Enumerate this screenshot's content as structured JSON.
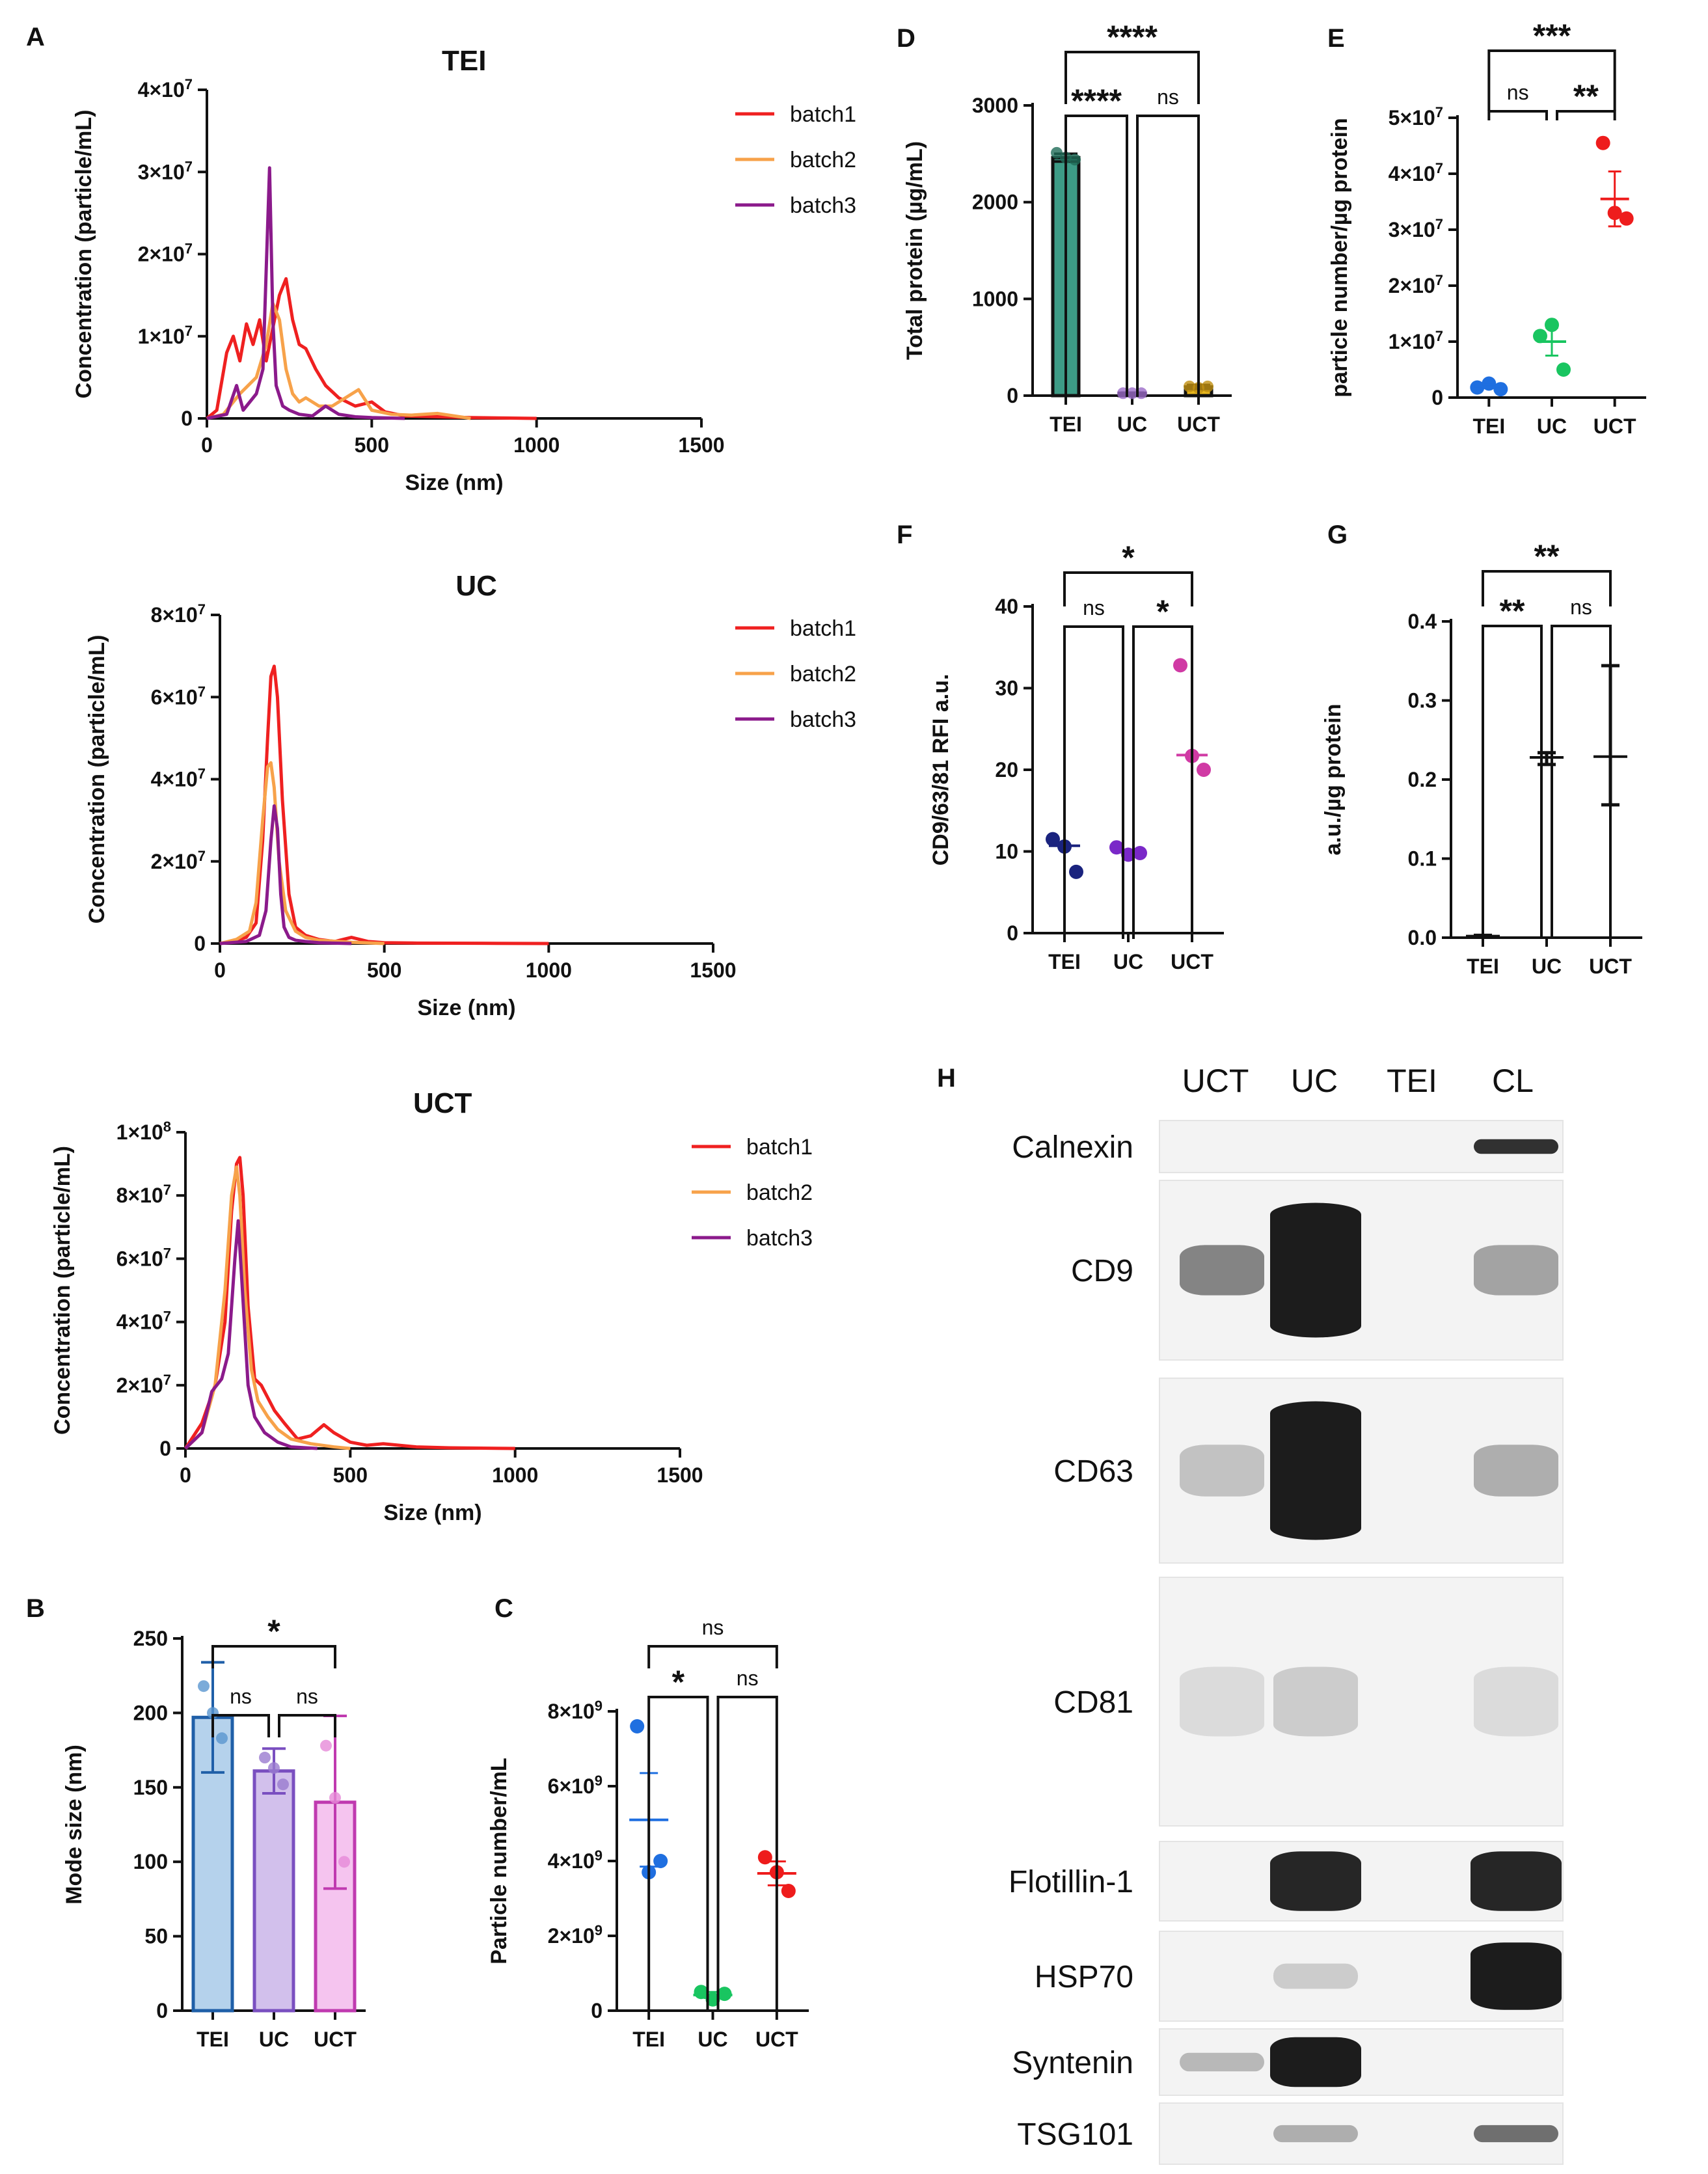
{
  "colors": {
    "batch1": "#ef2020",
    "batch2": "#f7a24a",
    "batch3": "#8b1a8b",
    "teal": "#3d9b86",
    "purple_dot": "#9b6bc8",
    "yellow": "#e8b81e",
    "blue": "#1f6fe0",
    "green": "#19c560",
    "red": "#ee1c1c",
    "navy": "#1a237e",
    "violet": "#7a28c8",
    "magenta": "#d03aa4",
    "bar_blue_fill": "#b5d2ec",
    "bar_blue_edge": "#1f5fa8",
    "bar_purple_fill": "#d2c0ec",
    "bar_purple_edge": "#7a4fc0",
    "bar_pink_fill": "#f5c4ef",
    "bar_pink_edge": "#c03ab0"
  },
  "chart_data": [
    {
      "id": "A_TEI",
      "panel_letter": "A",
      "type": "line",
      "title": "TEI",
      "xlabel": "Size (nm)",
      "ylabel": "Concentration (particle/mL)",
      "xlim": [
        0,
        1500
      ],
      "ylim": [
        0,
        40000000
      ],
      "xticks": [
        "0",
        "500",
        "1000",
        "1500"
      ],
      "yticks": [
        "0",
        "1×10^7",
        "2×10^7",
        "3×10^7",
        "4×10^7"
      ],
      "legend": [
        "batch1",
        "batch2",
        "batch3"
      ],
      "series": [
        {
          "name": "batch1",
          "x": [
            0,
            30,
            60,
            80,
            100,
            120,
            140,
            160,
            180,
            200,
            220,
            240,
            260,
            280,
            300,
            330,
            360,
            400,
            450,
            500,
            540,
            600,
            700,
            800,
            900,
            1000
          ],
          "y": [
            0,
            1000000,
            8000000,
            10000000,
            7000000,
            11500000,
            9000000,
            12000000,
            7000000,
            11000000,
            15000000,
            17000000,
            12000000,
            9000000,
            8500000,
            6000000,
            4000000,
            2500000,
            1500000,
            2000000,
            800000,
            300000,
            200000,
            100000,
            50000,
            0
          ]
        },
        {
          "name": "batch2",
          "x": [
            0,
            50,
            100,
            150,
            180,
            200,
            220,
            240,
            260,
            280,
            300,
            340,
            380,
            420,
            460,
            500,
            560,
            620,
            700,
            800
          ],
          "y": [
            0,
            500000,
            3000000,
            5000000,
            9000000,
            14000000,
            12000000,
            6000000,
            3000000,
            2000000,
            2500000,
            1500000,
            1500000,
            2500000,
            3500000,
            1000000,
            500000,
            400000,
            600000,
            0
          ]
        },
        {
          "name": "batch3",
          "x": [
            0,
            60,
            90,
            110,
            130,
            150,
            170,
            190,
            200,
            210,
            230,
            250,
            280,
            320,
            360,
            400,
            450,
            500,
            600
          ],
          "y": [
            0,
            500000,
            4000000,
            1000000,
            2000000,
            3000000,
            6000000,
            30500000,
            12000000,
            4000000,
            1500000,
            1000000,
            500000,
            300000,
            1500000,
            500000,
            200000,
            100000,
            0
          ]
        }
      ]
    },
    {
      "id": "A_UC",
      "type": "line",
      "title": "UC",
      "xlabel": "Size (nm)",
      "ylabel": "Concentration (particle/mL)",
      "xlim": [
        0,
        1500
      ],
      "ylim": [
        0,
        80000000
      ],
      "xticks": [
        "0",
        "500",
        "1000",
        "1500"
      ],
      "yticks": [
        "0",
        "2×10^7",
        "4×10^7",
        "6×10^7",
        "8×10^7"
      ],
      "legend": [
        "batch1",
        "batch2",
        "batch3"
      ],
      "series": [
        {
          "name": "batch1",
          "x": [
            0,
            40,
            80,
            110,
            130,
            145,
            155,
            165,
            175,
            190,
            210,
            230,
            260,
            300,
            350,
            400,
            450,
            500,
            600,
            800,
            1000
          ],
          "y": [
            0,
            500000,
            1500000,
            5000000,
            25000000,
            50000000,
            65000000,
            67500000,
            60000000,
            35000000,
            12000000,
            4000000,
            2000000,
            1000000,
            500000,
            1500000,
            500000,
            200000,
            100000,
            50000,
            0
          ]
        },
        {
          "name": "batch2",
          "x": [
            0,
            50,
            90,
            110,
            130,
            145,
            155,
            165,
            180,
            200,
            230,
            260,
            300,
            400,
            500
          ],
          "y": [
            0,
            1000000,
            3000000,
            10000000,
            30000000,
            43000000,
            44000000,
            38000000,
            20000000,
            8000000,
            3000000,
            1500000,
            800000,
            300000,
            0
          ]
        },
        {
          "name": "batch3",
          "x": [
            0,
            80,
            120,
            140,
            155,
            165,
            175,
            185,
            195,
            210,
            230,
            260,
            300,
            400
          ],
          "y": [
            0,
            500000,
            2000000,
            8000000,
            25000000,
            33500000,
            28000000,
            12000000,
            4000000,
            1500000,
            800000,
            500000,
            200000,
            0
          ]
        }
      ]
    },
    {
      "id": "A_UCT",
      "type": "line",
      "title": "UCT",
      "xlabel": "Size (nm)",
      "ylabel": "Concentration (particle/mL)",
      "xlim": [
        0,
        1500
      ],
      "ylim": [
        0,
        100000000
      ],
      "xticks": [
        "0",
        "500",
        "1000",
        "1500"
      ],
      "yticks": [
        "0",
        "2×10^7",
        "4×10^7",
        "6×10^7",
        "8×10^7",
        "1×10^8"
      ],
      "legend": [
        "batch1",
        "batch2",
        "batch3"
      ],
      "series": [
        {
          "name": "batch1",
          "x": [
            0,
            50,
            90,
            120,
            140,
            155,
            165,
            175,
            190,
            210,
            230,
            250,
            270,
            300,
            340,
            380,
            420,
            450,
            500,
            550,
            600,
            700,
            800,
            1000
          ],
          "y": [
            0,
            8000000,
            20000000,
            40000000,
            75000000,
            90000000,
            92000000,
            80000000,
            45000000,
            22000000,
            20000000,
            16000000,
            12000000,
            8000000,
            3000000,
            4000000,
            7500000,
            5000000,
            2000000,
            1000000,
            1500000,
            500000,
            200000,
            0
          ]
        },
        {
          "name": "batch2",
          "x": [
            0,
            50,
            90,
            120,
            140,
            155,
            165,
            180,
            200,
            220,
            250,
            280,
            320,
            380,
            450,
            500
          ],
          "y": [
            0,
            5000000,
            20000000,
            50000000,
            80000000,
            89000000,
            80000000,
            50000000,
            25000000,
            15000000,
            10000000,
            6000000,
            3000000,
            1500000,
            500000,
            0
          ]
        },
        {
          "name": "batch3",
          "x": [
            0,
            50,
            80,
            110,
            130,
            150,
            160,
            170,
            190,
            210,
            240,
            280,
            320,
            400
          ],
          "y": [
            0,
            5000000,
            18000000,
            22000000,
            30000000,
            60000000,
            72000000,
            55000000,
            20000000,
            10000000,
            5000000,
            2000000,
            500000,
            0
          ]
        }
      ]
    },
    {
      "id": "B",
      "panel_letter": "B",
      "type": "bar",
      "ylabel": "Mode size (nm)",
      "categories": [
        "TEI",
        "UC",
        "UCT"
      ],
      "values": [
        197,
        161,
        140
      ],
      "errors": [
        37,
        15,
        58
      ],
      "points": [
        [
          218,
          200,
          183
        ],
        [
          170,
          163,
          152
        ],
        [
          178,
          143,
          100
        ]
      ],
      "ylim": [
        0,
        250
      ],
      "yticks": [
        "0",
        "50",
        "100",
        "150",
        "200",
        "250"
      ],
      "sig": [
        {
          "from": 0,
          "to": 2,
          "label": "*",
          "level": 1
        },
        {
          "from": 0,
          "to": 1,
          "label": "ns",
          "level": 0
        },
        {
          "from": 1,
          "to": 2,
          "label": "ns",
          "level": 0
        }
      ]
    },
    {
      "id": "C",
      "panel_letter": "C",
      "type": "scatter",
      "ylabel": "Particle number/mL",
      "categories": [
        "TEI",
        "UC",
        "UCT"
      ],
      "points": [
        [
          7600000000,
          3700000000,
          4000000000
        ],
        [
          500000000,
          300000000,
          450000000
        ],
        [
          4100000000,
          3700000000,
          3200000000
        ]
      ],
      "mean": [
        5100000000,
        420000000,
        3670000000
      ],
      "sem": [
        1250000000,
        80000000,
        320000000
      ],
      "ylim": [
        0,
        8000000000
      ],
      "yticks": [
        "0",
        "2×10^9",
        "4×10^9",
        "6×10^9",
        "8×10^9"
      ],
      "sig": [
        {
          "from": 0,
          "to": 2,
          "label": "ns",
          "level": 1
        },
        {
          "from": 0,
          "to": 1,
          "label": "*",
          "level": 0
        },
        {
          "from": 1,
          "to": 2,
          "label": "ns",
          "level": 0
        }
      ]
    },
    {
      "id": "D",
      "panel_letter": "D",
      "type": "bar",
      "ylabel": "Total protein (µg/mL)",
      "categories": [
        "TEI",
        "UC",
        "UCT"
      ],
      "values": [
        2460,
        25,
        90
      ],
      "errors": [
        40,
        5,
        20
      ],
      "points": [
        [
          2510,
          2460,
          2440
        ],
        [
          25,
          25,
          25
        ],
        [
          95,
          80,
          95
        ]
      ],
      "ylim": [
        0,
        3000
      ],
      "yticks": [
        "0",
        "1000",
        "2000",
        "3000"
      ],
      "sig": [
        {
          "from": 0,
          "to": 2,
          "label": "****",
          "level": 1
        },
        {
          "from": 0,
          "to": 1,
          "label": "****",
          "level": 0
        },
        {
          "from": 1,
          "to": 2,
          "label": "ns",
          "level": 0
        }
      ]
    },
    {
      "id": "E",
      "panel_letter": "E",
      "type": "scatter",
      "ylabel": "particle number/µg protein",
      "categories": [
        "TEI",
        "UC",
        "UCT"
      ],
      "points": [
        [
          1800000,
          2500000,
          1500000
        ],
        [
          11000000,
          13000000,
          5000000
        ],
        [
          45500000,
          33000000,
          32000000
        ]
      ],
      "mean": [
        2000000,
        10000000,
        35500000
      ],
      "sem": [
        300000,
        2500000,
        4900000
      ],
      "ylim": [
        0,
        50000000
      ],
      "yticks": [
        "0",
        "1×10^7",
        "2×10^7",
        "3×10^7",
        "4×10^7",
        "5×10^7"
      ],
      "sig": [
        {
          "from": 0,
          "to": 2,
          "label": "***",
          "level": 1
        },
        {
          "from": 0,
          "to": 1,
          "label": "ns",
          "level": 0
        },
        {
          "from": 1,
          "to": 2,
          "label": "**",
          "level": 0
        }
      ]
    },
    {
      "id": "F",
      "panel_letter": "F",
      "type": "scatter",
      "ylabel": "CD9/63/81 RFI a.u.",
      "categories": [
        "TEI",
        "UC",
        "UCT"
      ],
      "points": [
        [
          11.5,
          10.6,
          7.5
        ],
        [
          10.5,
          9.6,
          9.8
        ],
        [
          32.8,
          21.7,
          20.0
        ]
      ],
      "mean": [
        10.7,
        9.9,
        21.8
      ],
      "ylim": [
        0,
        40
      ],
      "yticks": [
        "0",
        "10",
        "20",
        "30",
        "40"
      ],
      "sig": [
        {
          "from": 0,
          "to": 2,
          "label": "*",
          "level": 1
        },
        {
          "from": 0,
          "to": 1,
          "label": "ns",
          "level": 0
        },
        {
          "from": 1,
          "to": 2,
          "label": "*",
          "level": 0
        }
      ]
    },
    {
      "id": "G",
      "panel_letter": "G",
      "type": "scatter",
      "ylabel": "a.u./µg protein",
      "categories": [
        "TEI",
        "UC",
        "UCT"
      ],
      "mean": [
        0.002,
        0.228,
        0.229
      ],
      "err_low": [
        0.001,
        0.219,
        0.168
      ],
      "err_high": [
        0.003,
        0.234,
        0.344
      ],
      "ylim": [
        0,
        0.4
      ],
      "yticks": [
        "0.0",
        "0.1",
        "0.2",
        "0.3",
        "0.4"
      ],
      "sig": [
        {
          "from": 0,
          "to": 2,
          "label": "**",
          "level": 1
        },
        {
          "from": 0,
          "to": 1,
          "label": "**",
          "level": 0
        },
        {
          "from": 1,
          "to": 2,
          "label": "ns",
          "level": 0
        }
      ]
    }
  ],
  "western_blot": {
    "panel_letter": "H",
    "columns": [
      "UCT",
      "UC",
      "TEI",
      "CL"
    ],
    "rows": [
      {
        "label": "Calnexin",
        "bands": [
          0,
          0,
          0,
          0.9
        ]
      },
      {
        "label": "CD9",
        "bands": [
          0.5,
          1.0,
          0,
          0.35
        ]
      },
      {
        "label": "CD63",
        "bands": [
          0.2,
          1.0,
          0,
          0.3
        ]
      },
      {
        "label": "CD81",
        "bands": [
          0.08,
          0.15,
          0,
          0.08
        ]
      },
      {
        "label": "Flotillin-1",
        "bands": [
          0,
          0.95,
          0,
          0.95
        ]
      },
      {
        "label": "HSP70",
        "bands": [
          0,
          0.15,
          0,
          1.0
        ]
      },
      {
        "label": "Syntenin",
        "bands": [
          0.25,
          1.0,
          0,
          0
        ]
      },
      {
        "label": "TSG101",
        "bands": [
          0,
          0.3,
          0,
          0.6
        ]
      }
    ]
  }
}
